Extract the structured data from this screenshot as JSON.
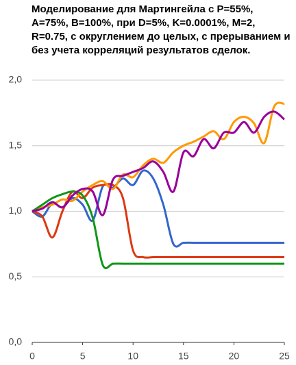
{
  "chart_data": {
    "type": "line",
    "title": "Моделирование для Мартингейла с P=55%, A=75%, B=100%, при D=5%, K=0.0001%, M=2, R=0.75, с округлением до целых, с прерыванием и без учета корреляций результатов сделок.",
    "x": [
      0,
      1,
      2,
      3,
      4,
      5,
      6,
      7,
      8,
      9,
      10,
      11,
      12,
      13,
      14,
      15,
      16,
      17,
      18,
      19,
      20,
      21,
      22,
      23,
      24,
      25
    ],
    "series": [
      {
        "color": "#3366cc",
        "values": [
          1.0,
          0.96,
          1.06,
          1.03,
          1.1,
          1.05,
          0.93,
          1.19,
          1.18,
          1.25,
          1.2,
          1.31,
          1.25,
          1.05,
          0.75,
          0.76,
          0.76,
          0.76,
          0.76,
          0.76,
          0.76,
          0.76,
          0.76,
          0.76,
          0.76,
          0.76
        ]
      },
      {
        "color": "#dc3912",
        "values": [
          1.0,
          0.96,
          0.8,
          1.0,
          1.15,
          1.1,
          1.18,
          1.2,
          1.2,
          1.1,
          0.7,
          0.65,
          0.65,
          0.65,
          0.65,
          0.65,
          0.65,
          0.65,
          0.65,
          0.65,
          0.65,
          0.65,
          0.65,
          0.65,
          0.65,
          0.65
        ]
      },
      {
        "color": "#ff9900",
        "values": [
          1.0,
          1.03,
          1.05,
          1.09,
          1.08,
          1.15,
          1.2,
          1.23,
          1.17,
          1.28,
          1.26,
          1.35,
          1.4,
          1.37,
          1.45,
          1.5,
          1.53,
          1.57,
          1.61,
          1.55,
          1.68,
          1.72,
          1.67,
          1.52,
          1.8,
          1.82
        ]
      },
      {
        "color": "#109618",
        "values": [
          1.0,
          1.05,
          1.1,
          1.13,
          1.15,
          1.12,
          0.95,
          0.59,
          0.6,
          0.6,
          0.6,
          0.6,
          0.6,
          0.6,
          0.6,
          0.6,
          0.6,
          0.6,
          0.6,
          0.6,
          0.6,
          0.6,
          0.6,
          0.6,
          0.6,
          0.6
        ]
      },
      {
        "color": "#990099",
        "values": [
          1.0,
          1.02,
          1.07,
          1.03,
          1.12,
          1.17,
          1.15,
          0.97,
          1.24,
          1.27,
          1.3,
          1.33,
          1.38,
          1.3,
          1.15,
          1.45,
          1.42,
          1.55,
          1.48,
          1.6,
          1.6,
          1.68,
          1.6,
          1.72,
          1.76,
          1.7
        ]
      }
    ],
    "xlim": [
      0,
      25
    ],
    "xticks": [
      0,
      5,
      10,
      15,
      20,
      25
    ],
    "ylim": [
      0,
      2
    ],
    "yticks": [
      {
        "value": 0,
        "label": "0,0"
      },
      {
        "value": 0.5,
        "label": "0,5"
      },
      {
        "value": 1,
        "label": "1,0"
      },
      {
        "value": 1.5,
        "label": "1,5"
      },
      {
        "value": 2,
        "label": "2,0"
      }
    ],
    "grid": true
  }
}
